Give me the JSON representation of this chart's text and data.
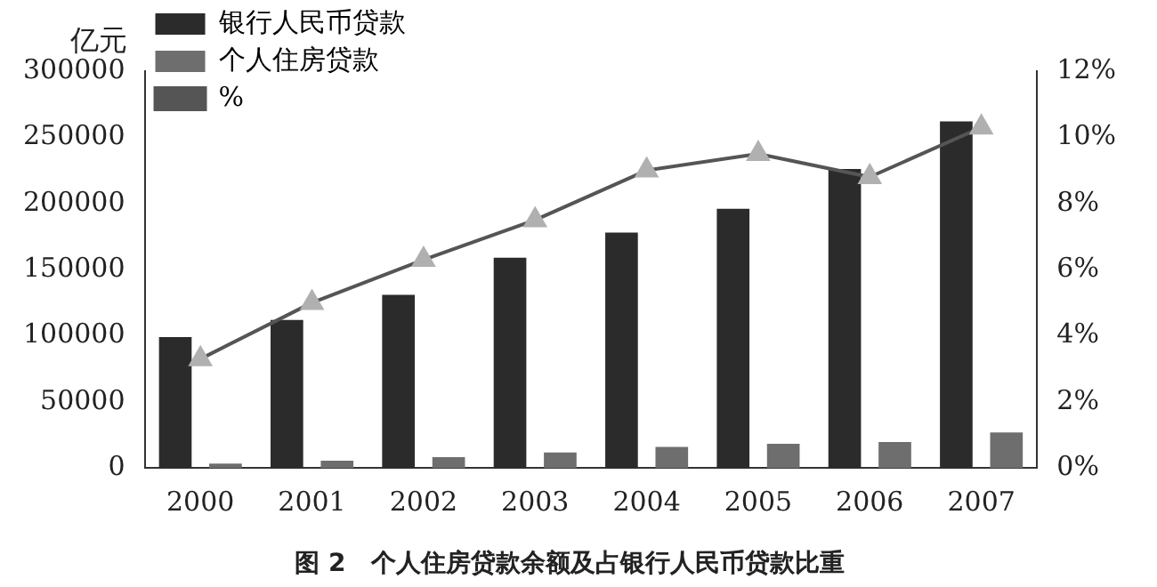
{
  "chart_data": {
    "type": "bar",
    "title": "图 2　个人住房贷款余额及占银行人民币贷款比重",
    "ylabel": "亿元",
    "categories": [
      "2000",
      "2001",
      "2002",
      "2003",
      "2004",
      "2005",
      "2006",
      "2007"
    ],
    "series": [
      {
        "name": "银行人民币贷款",
        "color": "#2b2b2b",
        "values": [
          99000,
          112000,
          131000,
          159000,
          178000,
          196000,
          226000,
          262000
        ]
      },
      {
        "name": "个人住房贷款",
        "color": "#6e6e6e",
        "values": [
          3400,
          5600,
          8300,
          11800,
          16000,
          18400,
          19800,
          27000
        ]
      },
      {
        "name": "%",
        "type": "line",
        "axis": "y2",
        "color": "#555555",
        "marker": "triangle",
        "values": [
          3.3,
          5.0,
          6.3,
          7.5,
          9.0,
          9.5,
          8.8,
          10.3
        ]
      }
    ],
    "ylim": [
      0,
      300000
    ],
    "yticks": [
      0,
      50000,
      100000,
      150000,
      200000,
      250000,
      300000
    ],
    "y2lim": [
      0,
      12
    ],
    "y2ticks": [
      {
        "value": 0,
        "label": "0%"
      },
      {
        "value": 2,
        "label": "2%"
      },
      {
        "value": 4,
        "label": "4%"
      },
      {
        "value": 6,
        "label": "6%"
      },
      {
        "value": 8,
        "label": "8%"
      },
      {
        "value": 10,
        "label": "10%"
      },
      {
        "value": 12,
        "label": "12%"
      }
    ],
    "legend": "top left",
    "grid": false
  }
}
